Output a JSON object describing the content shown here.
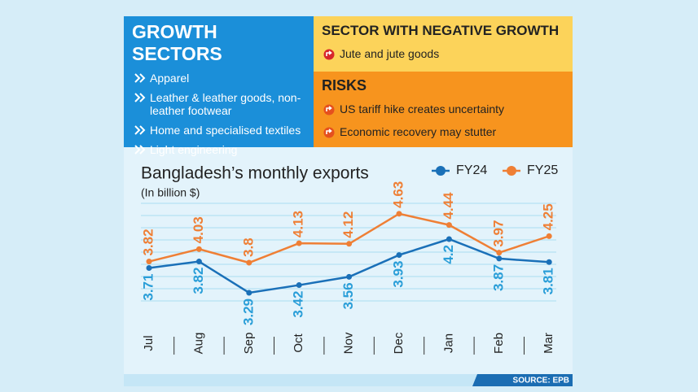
{
  "growth": {
    "title": "GROWTH SECTORS",
    "items": [
      "Apparel",
      "Leather & leather goods, non-leather footwear",
      "Home and specialised textiles",
      "Light engineering"
    ]
  },
  "negative": {
    "title": "SECTOR WITH NEGATIVE GROWTH",
    "items": [
      "Jute and jute goods"
    ]
  },
  "risks": {
    "title": "RISKS",
    "items": [
      "US tariff hike creates uncertainty",
      "Economic recovery may stutter"
    ]
  },
  "source": "SOURCE: EPB",
  "chart_data": {
    "type": "line",
    "title": "Bangladesh’s monthly exports",
    "subtitle": "(In billion $)",
    "categories": [
      "Jul",
      "Aug",
      "Sep",
      "Oct",
      "Nov",
      "Dec",
      "Jan",
      "Feb",
      "Mar"
    ],
    "series": [
      {
        "name": "FY24",
        "color": "#1a70b8",
        "label_color": "#2a9ed8",
        "values": [
          3.71,
          3.82,
          3.29,
          3.42,
          3.56,
          3.93,
          4.2,
          3.87,
          3.81
        ]
      },
      {
        "name": "FY25",
        "color": "#ef7f35",
        "label_color": "#ef7f35",
        "values": [
          3.82,
          4.03,
          3.8,
          4.13,
          4.12,
          4.63,
          4.44,
          3.97,
          4.25
        ]
      }
    ],
    "ylim": [
      3,
      5
    ],
    "legend": "top-right"
  }
}
